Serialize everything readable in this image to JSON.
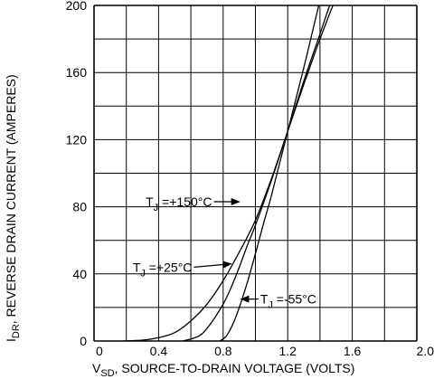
{
  "chart_data": {
    "type": "line",
    "xlabel": {
      "main": "V",
      "sub": "SD",
      "rest": ", SOURCE-TO-DRAIN VOLTAGE (VOLTS)"
    },
    "ylabel": {
      "main": "I",
      "sub": "DR",
      "rest": ", REVERSE DRAIN CURRENT (AMPERES)"
    },
    "xlim": [
      0,
      2.0
    ],
    "ylim": [
      0,
      200
    ],
    "x_tick_labels": [
      "0",
      "0.4",
      "0.8",
      "1.2",
      "1.6",
      "2.0"
    ],
    "x_tick_values": [
      0,
      0.4,
      0.8,
      1.2,
      1.6,
      2.0
    ],
    "y_tick_labels": [
      "0",
      "40",
      "80",
      "120",
      "160",
      "200"
    ],
    "y_tick_values": [
      0,
      40,
      80,
      120,
      160,
      200
    ],
    "grid": true,
    "series": [
      {
        "name": "T_J = +150°C",
        "label": {
          "pre": "T",
          "sub": "J",
          "post": " =+150°C"
        },
        "x": [
          0.18,
          0.3,
          0.4,
          0.5,
          0.6,
          0.7,
          0.8,
          0.9,
          1.0,
          1.1,
          1.2,
          1.3,
          1.4,
          1.5
        ],
        "y": [
          0,
          0.5,
          2,
          5,
          12,
          22,
          36,
          53,
          72,
          97,
          125,
          153,
          180,
          205
        ]
      },
      {
        "name": "T_J = +25°C",
        "label": {
          "pre": "T",
          "sub": "J",
          "post": " =+25°C"
        },
        "x": [
          0.55,
          0.65,
          0.72,
          0.8,
          0.85,
          0.9,
          0.95,
          1.0,
          1.1,
          1.2,
          1.3,
          1.4,
          1.47
        ],
        "y": [
          0,
          3,
          10,
          22,
          32,
          44,
          57,
          69,
          96,
          125,
          155,
          183,
          203
        ]
      },
      {
        "name": "T_J = -55°C",
        "label": {
          "pre": "T",
          "sub": "J",
          "post": " =-55°C"
        },
        "x": [
          0.78,
          0.82,
          0.86,
          0.9,
          0.95,
          1.0,
          1.05,
          1.1,
          1.2,
          1.3,
          1.35,
          1.4
        ],
        "y": [
          0,
          3,
          10,
          20,
          35,
          52,
          70,
          87,
          125,
          163,
          183,
          203
        ]
      }
    ],
    "annotations": [
      {
        "series": 0,
        "text_x": 0.32,
        "text_y": 83,
        "arrow_to": [
          0.9,
          83
        ]
      },
      {
        "series": 1,
        "text_x": 0.24,
        "text_y": 44,
        "arrow_to": [
          0.85,
          46
        ]
      },
      {
        "series": 2,
        "text_x": 1.03,
        "text_y": 25,
        "arrow_to": [
          0.91,
          25
        ]
      }
    ]
  }
}
